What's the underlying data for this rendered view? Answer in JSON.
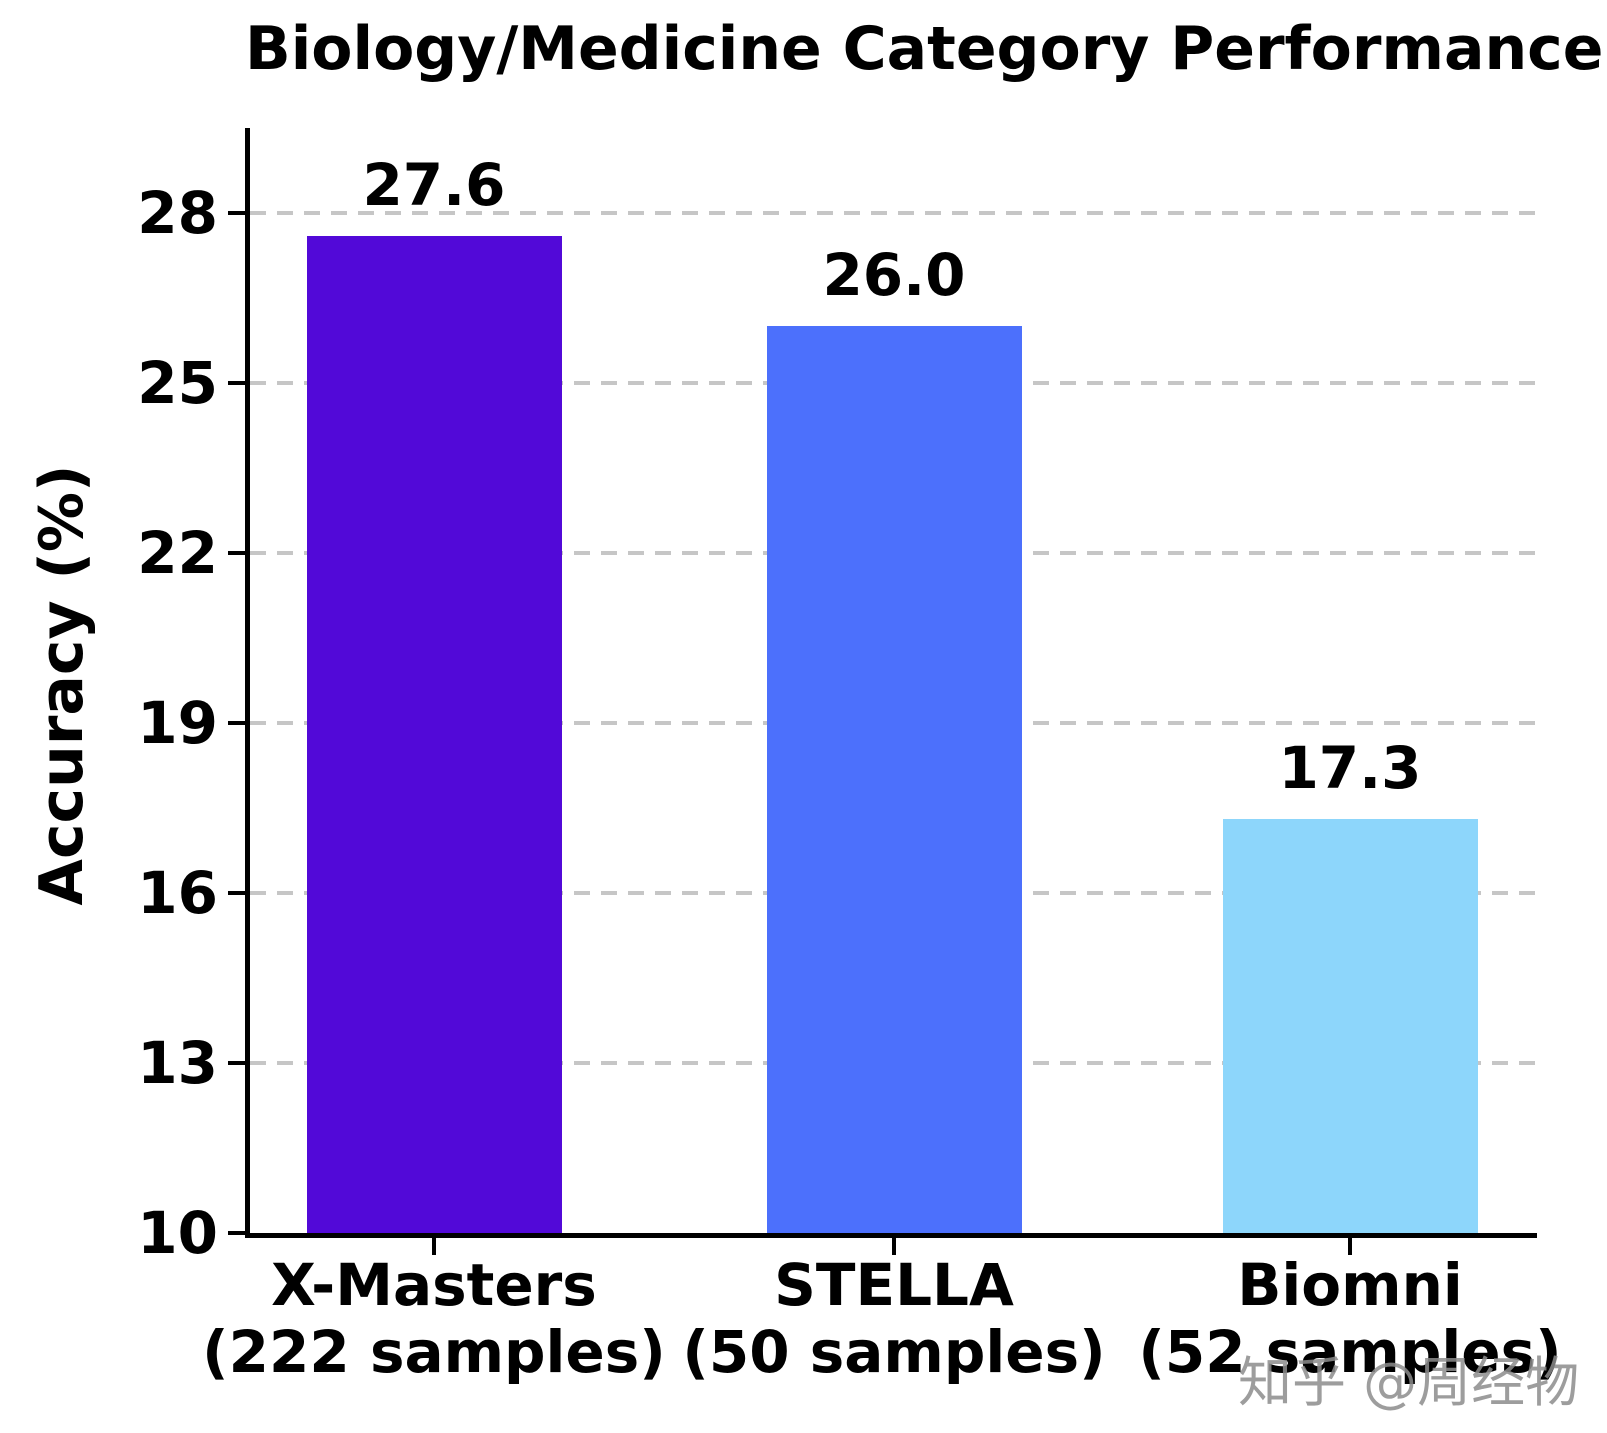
{
  "chart_data": {
    "type": "bar",
    "title": "Biology/Medicine Category Performance",
    "xlabel": "",
    "ylabel": "Accuracy (%)",
    "categories": [
      "X-Masters",
      "STELLA",
      "Biomni"
    ],
    "category_sublabels": [
      "(222 samples)",
      "(50 samples)",
      "(52 samples)"
    ],
    "values": [
      27.6,
      26.0,
      17.3
    ],
    "value_labels": [
      "27.6",
      "26.0",
      "17.3"
    ],
    "bar_colors": [
      "#5209d8",
      "#4c70fc",
      "#8dd6fb"
    ],
    "yticks": [
      10,
      13,
      16,
      19,
      22,
      25,
      28
    ],
    "ylim": [
      10,
      29.5
    ],
    "grid": "horizontal dashed gray",
    "legend": "none"
  },
  "watermark": {
    "text": "知乎 @周经物",
    "color": "#8c8c8c"
  }
}
